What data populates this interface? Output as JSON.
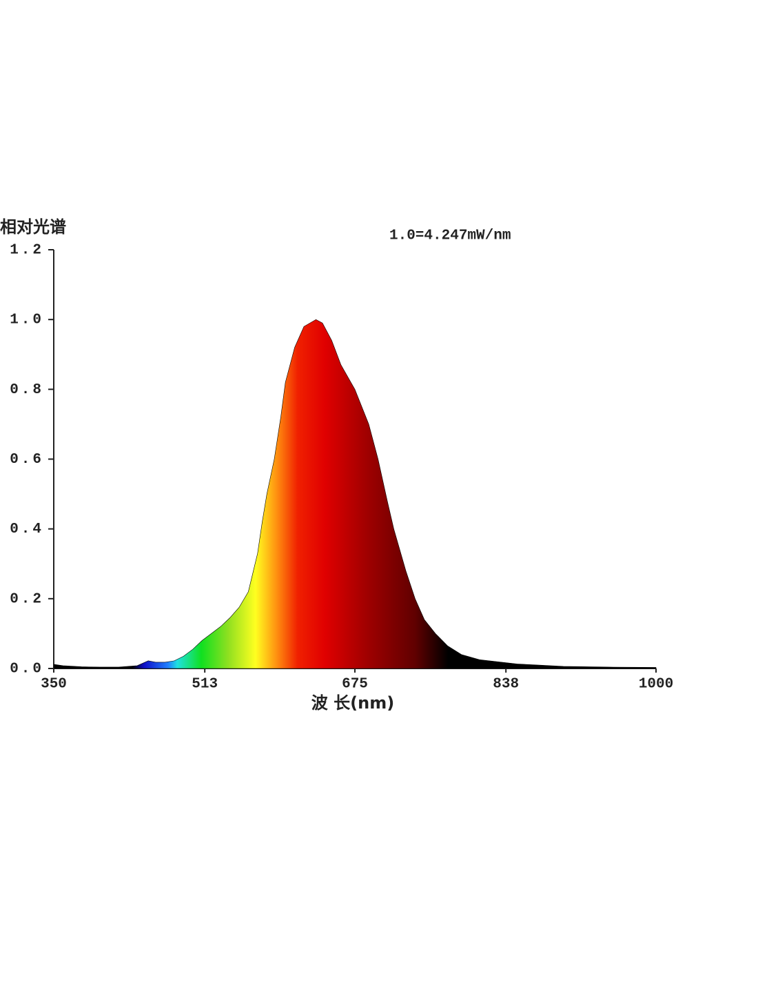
{
  "chart_data": {
    "type": "area",
    "y_label": "相对光谱",
    "annotation": "1.0=4.247mW/nm",
    "x_label": "波 长(nm)",
    "x": [
      350,
      360,
      380,
      400,
      420,
      440,
      452,
      460,
      470,
      480,
      490,
      500,
      510,
      520,
      530,
      540,
      550,
      560,
      570,
      575,
      580,
      588,
      595,
      600,
      610,
      620,
      633,
      640,
      650,
      660,
      675,
      690,
      700,
      710,
      717,
      730,
      740,
      750,
      762,
      775,
      790,
      810,
      827,
      850,
      872,
      900,
      950,
      1000
    ],
    "values": [
      0.012,
      0.008,
      0.005,
      0.004,
      0.004,
      0.008,
      0.022,
      0.018,
      0.018,
      0.022,
      0.035,
      0.055,
      0.08,
      0.1,
      0.12,
      0.145,
      0.175,
      0.22,
      0.33,
      0.42,
      0.5,
      0.6,
      0.72,
      0.82,
      0.92,
      0.98,
      1.0,
      0.99,
      0.94,
      0.87,
      0.8,
      0.7,
      0.6,
      0.48,
      0.4,
      0.28,
      0.2,
      0.14,
      0.1,
      0.065,
      0.04,
      0.025,
      0.02,
      0.013,
      0.01,
      0.006,
      0.004,
      0.003
    ],
    "xlim": [
      350,
      1000
    ],
    "xticks": [
      350,
      513,
      675,
      838,
      1000
    ],
    "ylim": [
      0,
      1.2
    ],
    "yticks": [
      {
        "value": 0,
        "label": "0.0"
      },
      0.2,
      0.4,
      0.6,
      0.8,
      {
        "value": 1,
        "label": "1.0"
      },
      1.2
    ]
  }
}
